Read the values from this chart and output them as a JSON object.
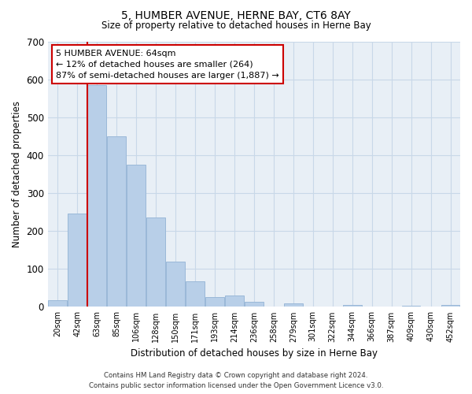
{
  "title": "5, HUMBER AVENUE, HERNE BAY, CT6 8AY",
  "subtitle": "Size of property relative to detached houses in Herne Bay",
  "xlabel": "Distribution of detached houses by size in Herne Bay",
  "ylabel": "Number of detached properties",
  "bar_labels": [
    "20sqm",
    "42sqm",
    "63sqm",
    "85sqm",
    "106sqm",
    "128sqm",
    "150sqm",
    "171sqm",
    "193sqm",
    "214sqm",
    "236sqm",
    "258sqm",
    "279sqm",
    "301sqm",
    "322sqm",
    "344sqm",
    "366sqm",
    "387sqm",
    "409sqm",
    "430sqm",
    "452sqm"
  ],
  "bar_values": [
    18,
    247,
    584,
    450,
    375,
    235,
    120,
    67,
    25,
    31,
    14,
    0,
    10,
    0,
    0,
    5,
    0,
    0,
    3,
    0,
    5
  ],
  "bar_color": "#b8cfe8",
  "bar_edge_color": "#9ab8d8",
  "property_line_color": "#cc0000",
  "ylim": [
    0,
    700
  ],
  "yticks": [
    0,
    100,
    200,
    300,
    400,
    500,
    600,
    700
  ],
  "annotation_title": "5 HUMBER AVENUE: 64sqm",
  "annotation_line1": "← 12% of detached houses are smaller (264)",
  "annotation_line2": "87% of semi-detached houses are larger (1,887) →",
  "annotation_box_color": "#ffffff",
  "annotation_border_color": "#cc0000",
  "footer_line1": "Contains HM Land Registry data © Crown copyright and database right 2024.",
  "footer_line2": "Contains public sector information licensed under the Open Government Licence v3.0.",
  "grid_color": "#c8d8e8",
  "background_color": "#e8eff6"
}
